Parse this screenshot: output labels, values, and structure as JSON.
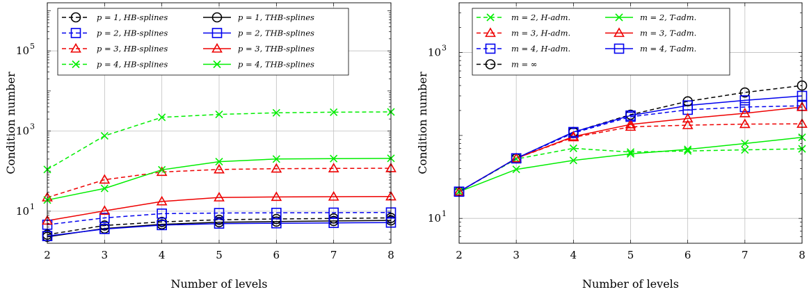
{
  "chart_data": [
    {
      "type": "line",
      "xlabel": "Number of levels",
      "ylabel": "Condition number",
      "y_scale": "log",
      "xlim": [
        2,
        8
      ],
      "ylim_log10": [
        0.2,
        6.2
      ],
      "x_ticks": [
        2,
        3,
        4,
        5,
        6,
        7,
        8
      ],
      "y_ticks": [
        {
          "log10": 1,
          "label": "10",
          "exp": "1"
        },
        {
          "log10": 3,
          "label": "10",
          "exp": "3"
        },
        {
          "log10": 5,
          "label": "10",
          "exp": "5"
        }
      ],
      "grid": true,
      "legend_position": "top-left",
      "x": [
        2,
        3,
        4,
        5,
        6,
        7,
        8
      ],
      "series": [
        {
          "name": "p = 1, HB-splines",
          "color": "#000000",
          "dash": true,
          "marker": "circle",
          "values": [
            2.6,
            4.4,
            5.4,
            6.1,
            6.4,
            6.6,
            6.8
          ]
        },
        {
          "name": "p = 2, HB-splines",
          "color": "#0000ee",
          "dash": true,
          "marker": "square",
          "values": [
            4.6,
            6.8,
            8.7,
            9.0,
            9.1,
            9.2,
            9.3
          ]
        },
        {
          "name": "p = 3, HB-splines",
          "color": "#ee0000",
          "dash": true,
          "marker": "triangle",
          "values": [
            22,
            61,
            95,
            110,
            115,
            117,
            118
          ]
        },
        {
          "name": "p = 4, HB-splines",
          "color": "#00ee00",
          "dash": true,
          "marker": "cross",
          "values": [
            110,
            760,
            2200,
            2600,
            2850,
            2950,
            3000
          ]
        },
        {
          "name": "p = 1, THB-splines",
          "color": "#000000",
          "dash": false,
          "marker": "circle",
          "values": [
            2.3,
            3.7,
            4.7,
            5.3,
            5.5,
            5.7,
            5.9
          ]
        },
        {
          "name": "p = 2, THB-splines",
          "color": "#0000ee",
          "dash": false,
          "marker": "square",
          "values": [
            2.4,
            3.6,
            4.5,
            4.9,
            5.0,
            5.1,
            5.2
          ]
        },
        {
          "name": "p = 3, THB-splines",
          "color": "#ee0000",
          "dash": false,
          "marker": "triangle",
          "values": [
            5.8,
            10.2,
            17.5,
            22,
            22.6,
            23,
            23.3
          ]
        },
        {
          "name": "p = 4, THB-splines",
          "color": "#00ee00",
          "dash": false,
          "marker": "cross",
          "values": [
            19,
            37,
            108,
            172,
            200,
            205,
            208
          ]
        }
      ]
    },
    {
      "type": "line",
      "xlabel": "Number of levels",
      "ylabel": "Condition number",
      "y_scale": "log",
      "xlim": [
        2,
        8
      ],
      "ylim_log10": [
        0.7,
        3.6
      ],
      "x_ticks": [
        2,
        3,
        4,
        5,
        6,
        7,
        8
      ],
      "y_ticks": [
        {
          "log10": 1,
          "label": "10",
          "exp": "1"
        },
        {
          "log10": 3,
          "label": "10",
          "exp": "3"
        }
      ],
      "grid": true,
      "legend_position": "top-left",
      "x": [
        2,
        3,
        4,
        5,
        6,
        7,
        8
      ],
      "series": [
        {
          "name": "m = 2, H-adm.",
          "color": "#00ee00",
          "dash": true,
          "marker": "cross",
          "values": [
            21,
            52,
            70,
            63,
            65,
            67,
            69
          ]
        },
        {
          "name": "m = 3, H-adm.",
          "color": "#ee0000",
          "dash": true,
          "marker": "triangle",
          "values": [
            21,
            53,
            95,
            127,
            133,
            137,
            138
          ]
        },
        {
          "name": "m = 4, H-adm.",
          "color": "#0000ee",
          "dash": true,
          "marker": "square",
          "values": [
            21,
            53,
            107,
            168,
            204,
            220,
            228
          ]
        },
        {
          "name": "m = ∞",
          "color": "#000000",
          "dash": true,
          "marker": "circle",
          "values": [
            21,
            53,
            110,
            178,
            258,
            330,
            400
          ]
        },
        {
          "name": "m = 2, T-adm.",
          "color": "#00ee00",
          "dash": false,
          "marker": "cross",
          "values": [
            21,
            39,
            50,
            60,
            68,
            80,
            95
          ]
        },
        {
          "name": "m = 3, T-adm.",
          "color": "#ee0000",
          "dash": false,
          "marker": "triangle",
          "values": [
            21,
            53,
            97,
            136,
            160,
            185,
            220
          ]
        },
        {
          "name": "m = 4, T-adm.",
          "color": "#0000ee",
          "dash": false,
          "marker": "square",
          "values": [
            21,
            53,
            110,
            174,
            230,
            265,
            300
          ]
        }
      ]
    }
  ]
}
